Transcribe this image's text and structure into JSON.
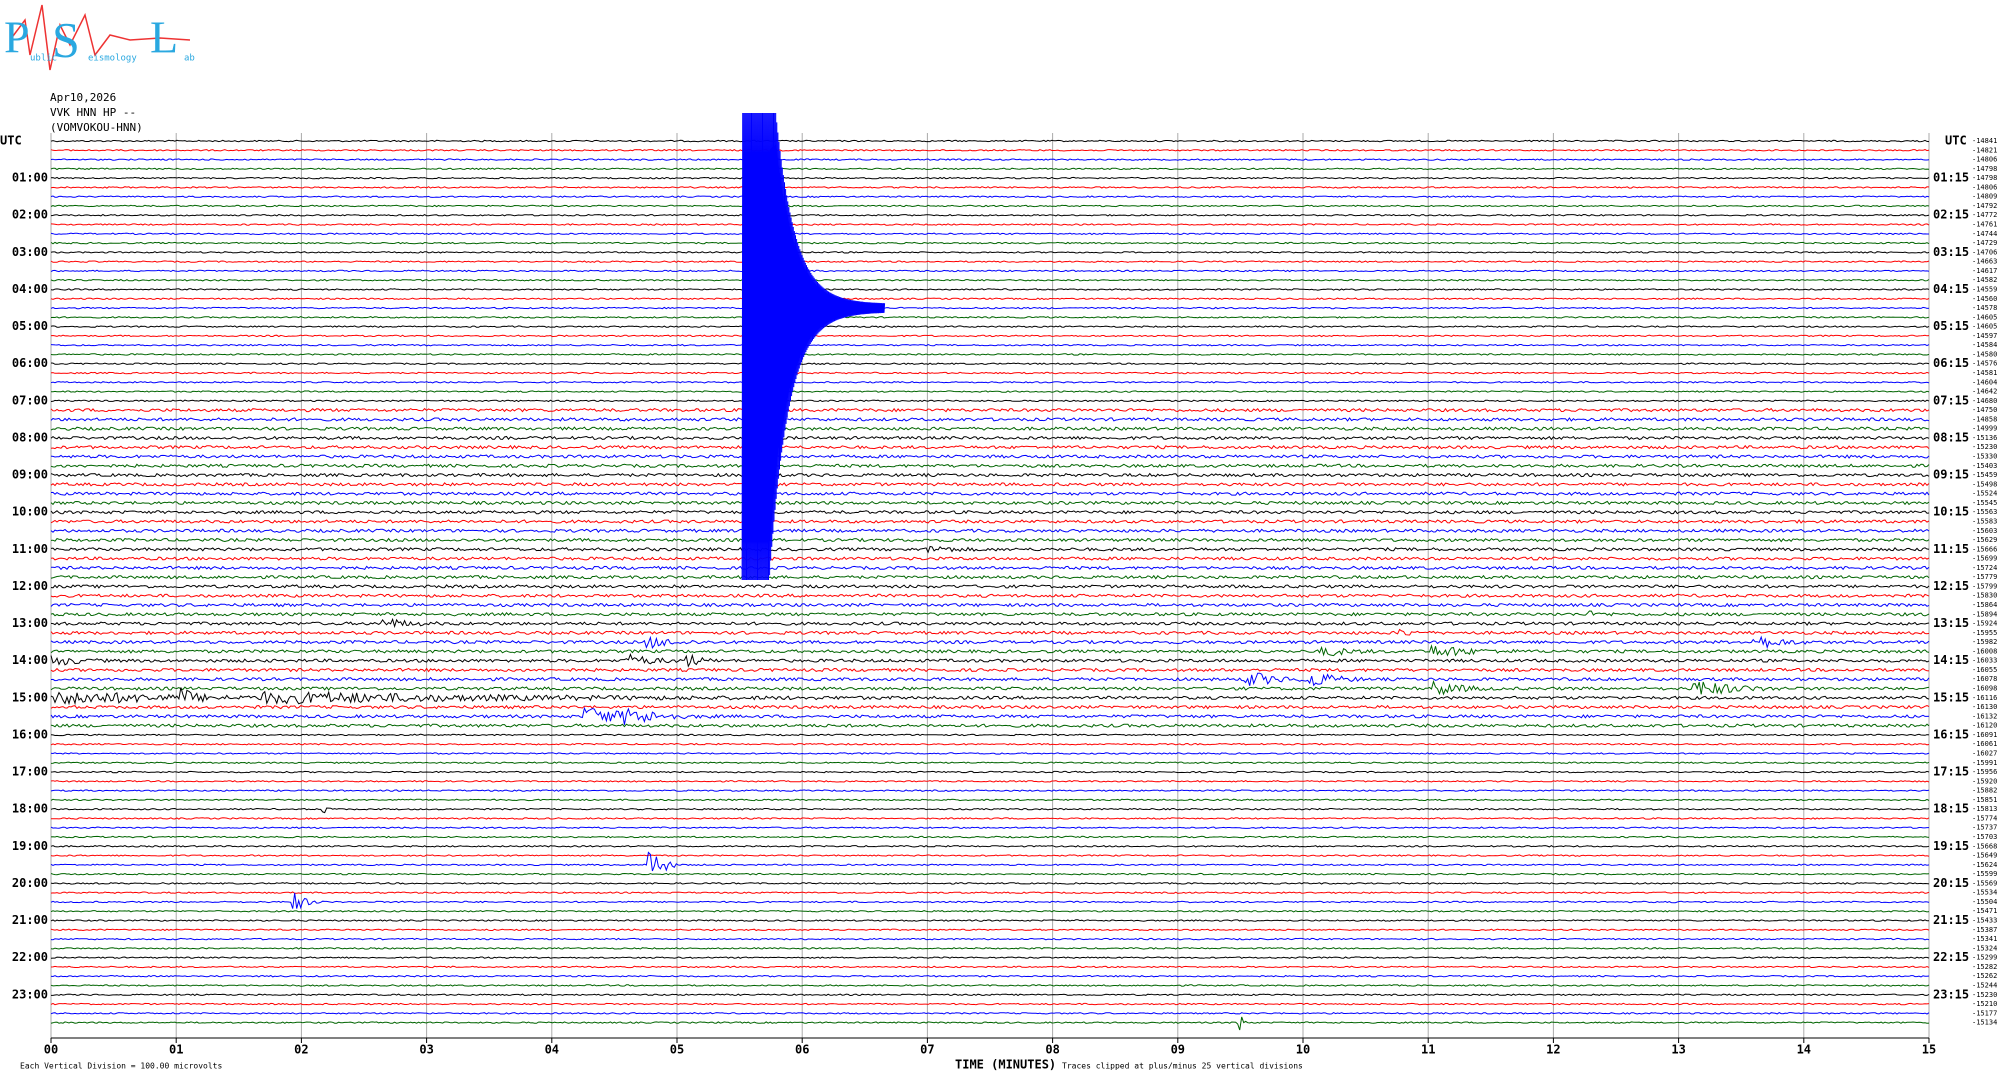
{
  "chart_data": {
    "type": "helicorder",
    "logo": {
      "letters": [
        "P",
        "S",
        "L"
      ],
      "words": [
        "ublic",
        "eismology",
        "ab"
      ]
    },
    "date": "Apr10,2026",
    "station": "VVK HNN HP --",
    "station_name": "(VOMVOKOU-HNN)",
    "left_axis_title": "UTC",
    "right_axis_title": "UTC",
    "left_labels": [
      "01:00",
      "02:00",
      "03:00",
      "04:00",
      "05:00",
      "06:00",
      "07:00",
      "08:00",
      "09:00",
      "10:00",
      "11:00",
      "12:00",
      "13:00",
      "14:00",
      "15:00",
      "16:00",
      "17:00",
      "18:00",
      "19:00",
      "20:00",
      "21:00",
      "22:00",
      "23:00"
    ],
    "right_labels": [
      "01:15",
      "02:15",
      "03:15",
      "04:15",
      "05:15",
      "06:15",
      "07:15",
      "08:15",
      "09:15",
      "10:15",
      "11:15",
      "12:15",
      "13:15",
      "14:15",
      "15:15",
      "16:15",
      "17:15",
      "18:15",
      "19:15",
      "20:15",
      "21:15",
      "22:15",
      "23:15"
    ],
    "trace_values": [
      -14841,
      -14821,
      -14806,
      -14798,
      -14798,
      -14806,
      -14809,
      -14792,
      -14772,
      -14761,
      -14744,
      -14729,
      -14706,
      -14663,
      -14617,
      -14582,
      -14559,
      -14560,
      -14578,
      -14605,
      -14605,
      -14597,
      -14584,
      -14580,
      -14576,
      -14581,
      -14604,
      -14642,
      -14680,
      -14750,
      -14858,
      -14999,
      -15136,
      -15230,
      -15330,
      -15403,
      -15459,
      -15498,
      -15524,
      -15545,
      -15563,
      -15583,
      -15603,
      -15629,
      -15666,
      -15699,
      -15724,
      -15779,
      -15799,
      -15830,
      -15864,
      -15894,
      -15924,
      -15955,
      -15982,
      -16008,
      -16033,
      -16055,
      -16078,
      -16098,
      -16116,
      -16130,
      -16132,
      -16120,
      -16091,
      -16061,
      -16027,
      -15991,
      -15956,
      -15920,
      -15882,
      -15851,
      -15813,
      -15774,
      -15737,
      -15703,
      -15668,
      -15649,
      -15624,
      -15599,
      -15569,
      -15534,
      -15504,
      -15471,
      -15433,
      -15387,
      -15341,
      -15324,
      -15299,
      -15282,
      -15262,
      -15244,
      -15230,
      -15210,
      -15177,
      -15134
    ],
    "trace_colors": [
      "#000000",
      "#ff0000",
      "#0000ff",
      "#006400"
    ],
    "xlabel": "TIME (MINUTES)",
    "xlim": [
      0,
      15
    ],
    "xticks": [
      {
        "value": 0,
        "label": "00"
      },
      {
        "value": 1,
        "label": "01"
      },
      {
        "value": 2,
        "label": "02"
      },
      {
        "value": 3,
        "label": "03"
      },
      {
        "value": 4,
        "label": "04"
      },
      {
        "value": 5,
        "label": "05"
      },
      {
        "value": 6,
        "label": "06"
      },
      {
        "value": 7,
        "label": "07"
      },
      {
        "value": 8,
        "label": "08"
      },
      {
        "value": 9,
        "label": "09"
      },
      {
        "value": 10,
        "label": "10"
      },
      {
        "value": 11,
        "label": "11"
      },
      {
        "value": 12,
        "label": "12"
      },
      {
        "value": 13,
        "label": "13"
      },
      {
        "value": 14,
        "label": "14"
      },
      {
        "value": 15,
        "label": "15"
      }
    ],
    "scale_note": "Each Vertical Division =  100.00 microvolts",
    "clip_note": "Traces clipped at plus/minus 25 vertical divisions",
    "grid": true
  }
}
